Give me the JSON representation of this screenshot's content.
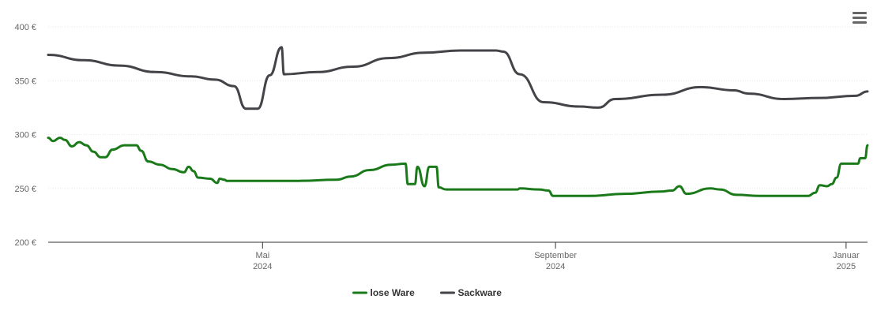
{
  "chart_data": {
    "type": "line",
    "ylim": [
      200,
      400
    ],
    "yticks": [
      {
        "value": 200,
        "label": "200 €"
      },
      {
        "value": 250,
        "label": "250 €"
      },
      {
        "value": 300,
        "label": "300 €"
      },
      {
        "value": 350,
        "label": "350 €"
      },
      {
        "value": 400,
        "label": "400 €"
      }
    ],
    "xlim": [
      "2024-02-01",
      "2025-01-10"
    ],
    "xticks": [
      {
        "date": "2024-05-01",
        "label": "Mai",
        "label2": "2024"
      },
      {
        "date": "2024-09-01",
        "label": "September",
        "label2": "2024"
      },
      {
        "date": "2025-01-01",
        "label": "Januar",
        "label2": "2025"
      }
    ],
    "grid": true,
    "legend_position": "bottom-center",
    "series": [
      {
        "name": "lose Ware",
        "color": "#1a7a1a",
        "points": [
          [
            "2024-02-01",
            297
          ],
          [
            "2024-02-03",
            294
          ],
          [
            "2024-02-06",
            297
          ],
          [
            "2024-02-08",
            295
          ],
          [
            "2024-02-11",
            289
          ],
          [
            "2024-02-14",
            293
          ],
          [
            "2024-02-17",
            290
          ],
          [
            "2024-02-20",
            284
          ],
          [
            "2024-02-23",
            279
          ],
          [
            "2024-02-25",
            279
          ],
          [
            "2024-02-28",
            286
          ],
          [
            "2024-03-04",
            290
          ],
          [
            "2024-03-09",
            290
          ],
          [
            "2024-03-11",
            285
          ],
          [
            "2024-03-14",
            275
          ],
          [
            "2024-03-19",
            272
          ],
          [
            "2024-03-24",
            268
          ],
          [
            "2024-03-29",
            265
          ],
          [
            "2024-03-31",
            270
          ],
          [
            "2024-04-02",
            266
          ],
          [
            "2024-04-04",
            260
          ],
          [
            "2024-04-09",
            259
          ],
          [
            "2024-04-12",
            255
          ],
          [
            "2024-04-13",
            259
          ],
          [
            "2024-04-15",
            258
          ],
          [
            "2024-04-16",
            257
          ],
          [
            "2024-04-26",
            257
          ],
          [
            "2024-05-16",
            257
          ],
          [
            "2024-06-01",
            258
          ],
          [
            "2024-06-07",
            261
          ],
          [
            "2024-06-15",
            267
          ],
          [
            "2024-06-24",
            272
          ],
          [
            "2024-06-30",
            273
          ],
          [
            "2024-07-01",
            254
          ],
          [
            "2024-07-04",
            254
          ],
          [
            "2024-07-05",
            270
          ],
          [
            "2024-07-08",
            252
          ],
          [
            "2024-07-10",
            270
          ],
          [
            "2024-07-13",
            270
          ],
          [
            "2024-07-14",
            251
          ],
          [
            "2024-07-17",
            249
          ],
          [
            "2024-07-27",
            249
          ],
          [
            "2024-08-06",
            249
          ],
          [
            "2024-08-16",
            249
          ],
          [
            "2024-08-17",
            250
          ],
          [
            "2024-08-25",
            249
          ],
          [
            "2024-08-29",
            248
          ],
          [
            "2024-08-31",
            243
          ],
          [
            "2024-09-15",
            243
          ],
          [
            "2024-09-30",
            245
          ],
          [
            "2024-10-15",
            247
          ],
          [
            "2024-10-20",
            248
          ],
          [
            "2024-10-23",
            252
          ],
          [
            "2024-10-26",
            245
          ],
          [
            "2024-11-05",
            250
          ],
          [
            "2024-11-09",
            249
          ],
          [
            "2024-11-16",
            244
          ],
          [
            "2024-11-26",
            243
          ],
          [
            "2024-12-06",
            243
          ],
          [
            "2024-12-16",
            243
          ],
          [
            "2024-12-19",
            246
          ],
          [
            "2024-12-21",
            253
          ],
          [
            "2024-12-24",
            252
          ],
          [
            "2024-12-26",
            254
          ],
          [
            "2024-12-28",
            260
          ],
          [
            "2024-12-30",
            273
          ],
          [
            "2025-01-06",
            273
          ],
          [
            "2025-01-07",
            278
          ],
          [
            "2025-01-09",
            278
          ],
          [
            "2025-01-10",
            290
          ]
        ]
      },
      {
        "name": "Sackware",
        "color": "#434348",
        "points": [
          [
            "2024-02-01",
            374
          ],
          [
            "2024-02-16",
            369
          ],
          [
            "2024-03-02",
            364
          ],
          [
            "2024-03-17",
            358
          ],
          [
            "2024-04-01",
            354
          ],
          [
            "2024-04-11",
            351
          ],
          [
            "2024-04-19",
            345
          ],
          [
            "2024-04-24",
            324
          ],
          [
            "2024-04-29",
            324
          ],
          [
            "2024-05-04",
            355
          ],
          [
            "2024-05-09",
            381
          ],
          [
            "2024-05-10",
            356
          ],
          [
            "2024-05-24",
            358
          ],
          [
            "2024-06-08",
            363
          ],
          [
            "2024-06-23",
            371
          ],
          [
            "2024-07-08",
            376
          ],
          [
            "2024-07-23",
            378
          ],
          [
            "2024-08-07",
            378
          ],
          [
            "2024-08-10",
            377
          ],
          [
            "2024-08-17",
            356
          ],
          [
            "2024-08-27",
            330
          ],
          [
            "2024-09-11",
            326
          ],
          [
            "2024-09-19",
            325
          ],
          [
            "2024-09-26",
            333
          ],
          [
            "2024-10-16",
            337
          ],
          [
            "2024-11-01",
            344
          ],
          [
            "2024-11-15",
            341
          ],
          [
            "2024-11-21",
            338
          ],
          [
            "2024-12-06",
            333
          ],
          [
            "2024-12-21",
            334
          ],
          [
            "2025-01-05",
            336
          ],
          [
            "2025-01-10",
            340
          ]
        ]
      }
    ]
  }
}
